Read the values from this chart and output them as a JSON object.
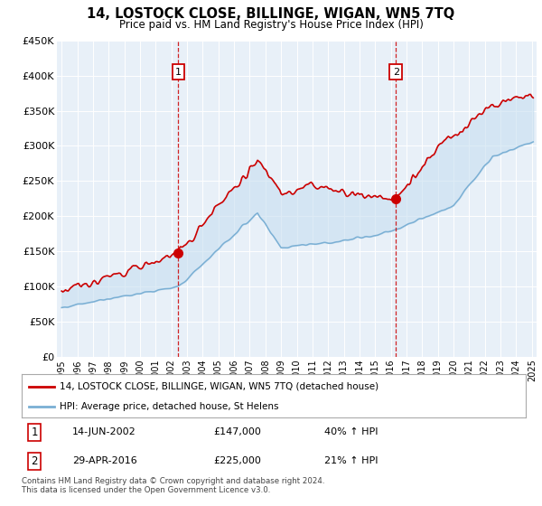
{
  "title": "14, LOSTOCK CLOSE, BILLINGE, WIGAN, WN5 7TQ",
  "subtitle": "Price paid vs. HM Land Registry's House Price Index (HPI)",
  "legend_line1": "14, LOSTOCK CLOSE, BILLINGE, WIGAN, WN5 7TQ (detached house)",
  "legend_line2": "HPI: Average price, detached house, St Helens",
  "footnote": "Contains HM Land Registry data © Crown copyright and database right 2024.\nThis data is licensed under the Open Government Licence v3.0.",
  "marker1_date": "14-JUN-2002",
  "marker1_price": "£147,000",
  "marker1_hpi": "40% ↑ HPI",
  "marker1_year": 2002.45,
  "marker1_value": 147000,
  "marker2_date": "29-APR-2016",
  "marker2_price": "£225,000",
  "marker2_hpi": "21% ↑ HPI",
  "marker2_year": 2016.33,
  "marker2_value": 225000,
  "red_color": "#cc0000",
  "blue_color": "#7aafd4",
  "fill_color": "#c8dff0",
  "bg_color": "#e8f0f8",
  "ylim": [
    0,
    450000
  ],
  "xlim_start": 1994.7,
  "xlim_end": 2025.3
}
